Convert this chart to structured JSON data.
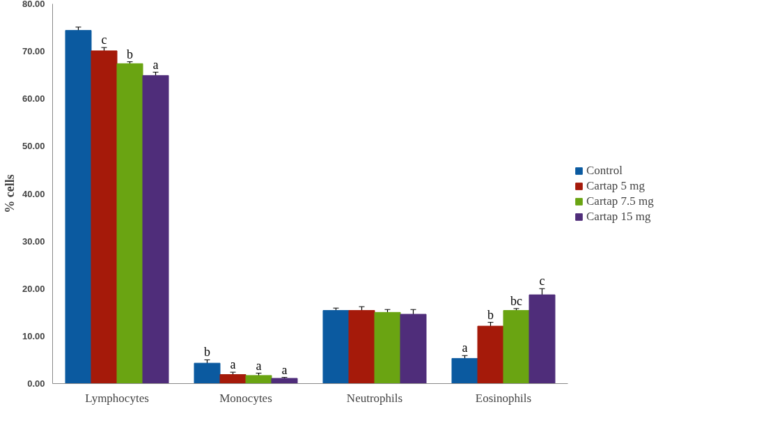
{
  "chart_data": {
    "type": "bar",
    "ylabel": "% cells",
    "categories": [
      "Lymphocytes",
      "Monocytes",
      "Neutrophils",
      "Eosinophils"
    ],
    "series": [
      {
        "name": "Control",
        "color": "#0b5aa0",
        "values": [
          74.4,
          4.3,
          15.4,
          5.3
        ],
        "errors": [
          0.7,
          0.7,
          0.5,
          0.6
        ],
        "value_labels": [
          null,
          "b",
          null,
          "a"
        ]
      },
      {
        "name": "Cartap 5 mg",
        "color": "#a51a0a",
        "values": [
          70.1,
          1.9,
          15.4,
          12.1
        ],
        "errors": [
          0.7,
          0.5,
          0.8,
          0.8
        ],
        "value_labels": [
          "c",
          "a",
          null,
          "b"
        ]
      },
      {
        "name": "Cartap 7.5 mg",
        "color": "#6aa412",
        "values": [
          67.4,
          1.7,
          15.0,
          15.4
        ],
        "errors": [
          0.4,
          0.5,
          0.6,
          0.4
        ],
        "value_labels": [
          "b",
          "a",
          null,
          "bc"
        ]
      },
      {
        "name": "Cartap 15 mg",
        "color": "#4f2d7a",
        "values": [
          64.9,
          1.1,
          14.6,
          18.7
        ],
        "errors": [
          0.7,
          0.2,
          1.0,
          1.3
        ],
        "value_labels": [
          "a",
          "a",
          null,
          "c"
        ]
      }
    ],
    "ylim": [
      0,
      80
    ],
    "yticks": [
      {
        "value": 0,
        "label": "0.00"
      },
      {
        "value": 10,
        "label": "10.00"
      },
      {
        "value": 20,
        "label": "20.00"
      },
      {
        "value": 30,
        "label": "30.00"
      },
      {
        "value": 40,
        "label": "40.00"
      },
      {
        "value": 50,
        "label": "50.00"
      },
      {
        "value": 60,
        "label": "60.00"
      },
      {
        "value": 70,
        "label": "70.00"
      },
      {
        "value": 80,
        "label": "80.00"
      }
    ],
    "legend": "right",
    "grid": false
  }
}
